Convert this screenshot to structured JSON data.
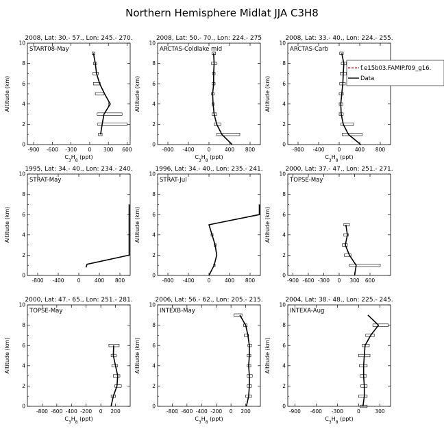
{
  "figure_title": "Northern Hemisphere Midlat JJA C3H8",
  "chart_data": [
    {
      "type": "line",
      "header": "2008, Lat:  30.- 57., Lon: 245.- 270.",
      "campaign": "START08-May",
      "xlabel": "C3H8 (ppt)",
      "ylabel": "Altitude (km)",
      "xlim": [
        -1000,
        650
      ],
      "ylim": [
        0,
        10
      ],
      "xticks": [
        -900,
        -600,
        -300,
        0,
        300,
        600
      ],
      "yticks": [
        0,
        2,
        4,
        6,
        8,
        10
      ],
      "series": [
        {
          "name": "",
          "y": [
            1,
            2,
            3,
            4,
            5,
            6,
            7,
            8,
            9
          ],
          "x": [
            175,
            200,
            230,
            330,
            240,
            160,
            110,
            90,
            60
          ]
        }
      ],
      "ranges": [
        {
          "y": 1,
          "lo": 140,
          "hi": 200
        },
        {
          "y": 2,
          "lo": 130,
          "hi": 600
        },
        {
          "y": 3,
          "lo": 120,
          "hi": 520
        },
        {
          "y": 4,
          "lo": 300,
          "hi": 320
        },
        {
          "y": 5,
          "lo": 90,
          "hi": 230
        },
        {
          "y": 6,
          "lo": 60,
          "hi": 170
        },
        {
          "y": 7,
          "lo": 50,
          "hi": 140
        },
        {
          "y": 8,
          "lo": 60,
          "hi": 110
        },
        {
          "y": 9,
          "lo": 40,
          "hi": 80
        }
      ]
    },
    {
      "type": "line",
      "header": "2008, Lat:  50.- 70., Lon: 224.- 275",
      "campaign": "ARCTAS-Coldlake mid",
      "xlabel": "C3H8 (ppt)",
      "ylabel": "Altitude (km)",
      "xlim": [
        -1000,
        1000
      ],
      "ylim": [
        0,
        10
      ],
      "xticks": [
        -800,
        -400,
        0,
        400,
        800
      ],
      "yticks": [
        0,
        2,
        4,
        6,
        8,
        10
      ],
      "series": [
        {
          "name": "",
          "y": [
            0,
            1,
            2,
            3,
            4,
            5,
            6,
            7,
            8,
            9
          ],
          "x": [
            450,
            250,
            150,
            100,
            80,
            70,
            90,
            90,
            100,
            90
          ]
        }
      ],
      "ranges": [
        {
          "y": 1,
          "lo": 150,
          "hi": 600
        },
        {
          "y": 2,
          "lo": 100,
          "hi": 230
        },
        {
          "y": 3,
          "lo": 60,
          "hi": 150
        },
        {
          "y": 4,
          "lo": 60,
          "hi": 100
        },
        {
          "y": 5,
          "lo": 50,
          "hi": 100
        },
        {
          "y": 6,
          "lo": 60,
          "hi": 120
        },
        {
          "y": 7,
          "lo": 70,
          "hi": 120
        },
        {
          "y": 8,
          "lo": 50,
          "hi": 150
        },
        {
          "y": 9,
          "lo": 60,
          "hi": 130
        }
      ]
    },
    {
      "type": "line",
      "header": "2008, Lat:  33.- 40., Lon: 224.- 255.",
      "campaign": "ARCTAS-Carb",
      "xlabel": "C3H8 (ppt)",
      "ylabel": "Altitude (km)",
      "xlim": [
        -1000,
        1000
      ],
      "ylim": [
        0,
        10
      ],
      "xticks": [
        -800,
        -400,
        0,
        400,
        800
      ],
      "yticks": [
        0,
        2,
        4,
        6,
        8,
        10
      ],
      "legend": {
        "position": "top-right",
        "entries": [
          "f.e15b03.FAMIP.f09_g16.",
          "Data"
        ]
      },
      "series": [
        {
          "name": "Data",
          "y": [
            0,
            1,
            2,
            3,
            4,
            5,
            6,
            7,
            8,
            9
          ],
          "x": [
            420,
            180,
            80,
            40,
            30,
            50,
            70,
            80,
            90,
            50
          ]
        }
      ],
      "ranges": [
        {
          "y": 1,
          "lo": 60,
          "hi": 450
        },
        {
          "y": 2,
          "lo": 30,
          "hi": 280
        },
        {
          "y": 3,
          "lo": 0,
          "hi": 80
        },
        {
          "y": 4,
          "lo": 0,
          "hi": 70
        },
        {
          "y": 5,
          "lo": 0,
          "hi": 80
        },
        {
          "y": 6,
          "lo": 10,
          "hi": 120
        },
        {
          "y": 7,
          "lo": 20,
          "hi": 140
        },
        {
          "y": 8,
          "lo": 40,
          "hi": 140
        },
        {
          "y": 9,
          "lo": 10,
          "hi": 80
        }
      ]
    },
    {
      "type": "line",
      "header": "1995, Lat: 34.- 40., Lon: 234.- 240.",
      "campaign": "STRAT-May",
      "xlabel": "",
      "ylabel": "Altitude (km)",
      "xlim": [
        -1000,
        1000
      ],
      "ylim": [
        0,
        10
      ],
      "xticks": [
        -800,
        -400,
        0,
        400,
        800
      ],
      "yticks": [
        0,
        2,
        4,
        6,
        8,
        10
      ],
      "series": [
        {
          "name": "",
          "y": [
            0.8,
            1.1,
            2,
            7
          ],
          "x": [
            140,
            160,
            980,
            980
          ]
        }
      ],
      "ranges": []
    },
    {
      "type": "line",
      "header": "1996, Lat: 34.- 40., Lon: 235.- 241.",
      "campaign": "STRAT-Jul",
      "xlabel": "",
      "ylabel": "Altitude (km)",
      "xlim": [
        -1000,
        1000
      ],
      "ylim": [
        0,
        10
      ],
      "xticks": [
        -800,
        -400,
        0,
        400,
        800
      ],
      "yticks": [
        0,
        2,
        4,
        6,
        8,
        10
      ],
      "series": [
        {
          "name": "",
          "y": [
            0,
            1,
            2,
            3,
            4,
            5,
            6,
            7
          ],
          "x": [
            0,
            100,
            150,
            120,
            60,
            0,
            980,
            980
          ]
        }
      ],
      "ranges": [
        {
          "y": 1,
          "lo": 90,
          "hi": 120
        },
        {
          "y": 3,
          "lo": 100,
          "hi": 140
        },
        {
          "y": 4,
          "lo": 40,
          "hi": 80
        }
      ]
    },
    {
      "type": "line",
      "header": "2000, Lat: 37.- 47., Lon: 251.- 271.",
      "campaign": "TOPSE-May",
      "xlabel": "",
      "ylabel": "Altitude (km)",
      "xlim": [
        -1000,
        1000
      ],
      "ylim": [
        0,
        10
      ],
      "xticks": [
        -900,
        -600,
        -300,
        0,
        300,
        600
      ],
      "yticks": [
        0,
        2,
        4,
        6,
        8,
        10
      ],
      "series": [
        {
          "name": "",
          "y": [
            0,
            1,
            2,
            3,
            4,
            5
          ],
          "x": [
            300,
            330,
            200,
            120,
            160,
            130
          ]
        }
      ],
      "ranges": [
        {
          "y": 1,
          "lo": 200,
          "hi": 800
        },
        {
          "y": 2,
          "lo": 100,
          "hi": 230
        },
        {
          "y": 3,
          "lo": 60,
          "hi": 160
        },
        {
          "y": 4,
          "lo": 90,
          "hi": 180
        },
        {
          "y": 5,
          "lo": 90,
          "hi": 200
        }
      ]
    },
    {
      "type": "line",
      "header": "2000, Lat: 47.- 65., Lon: 251.- 281.",
      "campaign": "TOPSE-May",
      "xlabel": "C3H8 (ppt)",
      "ylabel": "Altitude (km)",
      "xlim": [
        -1000,
        400
      ],
      "ylim": [
        0,
        10
      ],
      "xticks": [
        -800,
        -600,
        -400,
        -200,
        0,
        200
      ],
      "yticks": [
        0,
        2,
        4,
        6,
        8,
        10
      ],
      "series": [
        {
          "name": "",
          "y": [
            0,
            1,
            2,
            3,
            4,
            5,
            6
          ],
          "x": [
            140,
            170,
            220,
            230,
            200,
            170,
            175
          ]
        }
      ],
      "ranges": [
        {
          "y": 1,
          "lo": 140,
          "hi": 200
        },
        {
          "y": 2,
          "lo": 190,
          "hi": 280
        },
        {
          "y": 3,
          "lo": 170,
          "hi": 260
        },
        {
          "y": 4,
          "lo": 150,
          "hi": 230
        },
        {
          "y": 5,
          "lo": 140,
          "hi": 210
        },
        {
          "y": 6,
          "lo": 110,
          "hi": 250
        }
      ]
    },
    {
      "type": "line",
      "header": "2006, Lat: 56.- 62., Lon: 205.- 215.",
      "campaign": "INTEXB-May",
      "xlabel": "C3H8 (ppt)",
      "ylabel": "Altitude (km)",
      "xlim": [
        -1000,
        400
      ],
      "ylim": [
        0,
        10
      ],
      "xticks": [
        -800,
        -600,
        -400,
        -200,
        0,
        200
      ],
      "yticks": [
        0,
        2,
        4,
        6,
        8,
        10
      ],
      "series": [
        {
          "name": "",
          "y": [
            0,
            1,
            2,
            3,
            4,
            5,
            6,
            7,
            8,
            9
          ],
          "x": [
            210,
            240,
            250,
            250,
            240,
            250,
            250,
            230,
            200,
            120
          ]
        }
      ],
      "ranges": [
        {
          "y": 1,
          "lo": 200,
          "hi": 280
        },
        {
          "y": 2,
          "lo": 220,
          "hi": 280
        },
        {
          "y": 3,
          "lo": 220,
          "hi": 290
        },
        {
          "y": 4,
          "lo": 220,
          "hi": 270
        },
        {
          "y": 5,
          "lo": 220,
          "hi": 270
        },
        {
          "y": 6,
          "lo": 230,
          "hi": 280
        },
        {
          "y": 7,
          "lo": 180,
          "hi": 240
        },
        {
          "y": 8,
          "lo": 170,
          "hi": 220
        },
        {
          "y": 9,
          "lo": 40,
          "hi": 150
        }
      ]
    },
    {
      "type": "line",
      "header": "2004, Lat: 38.- 48., Lon: 225.- 245.",
      "campaign": "INTEXA-Aug",
      "xlabel": "C3H8 (ppt)",
      "ylabel": "Altitude (km)",
      "xlim": [
        -1000,
        450
      ],
      "ylim": [
        0,
        10
      ],
      "xticks": [
        -900,
        -600,
        -300,
        0,
        300
      ],
      "yticks": [
        0,
        2,
        4,
        6,
        8,
        10
      ],
      "series": [
        {
          "name": "",
          "y": [
            0,
            1,
            2,
            3,
            4,
            5,
            6,
            7,
            8,
            9
          ],
          "x": [
            60,
            80,
            80,
            70,
            70,
            80,
            90,
            170,
            280,
            130
          ]
        }
      ],
      "ranges": [
        {
          "y": 0,
          "lo": 20,
          "hi": 120
        },
        {
          "y": 1,
          "lo": 0,
          "hi": 120
        },
        {
          "y": 2,
          "lo": 30,
          "hi": 120
        },
        {
          "y": 3,
          "lo": 20,
          "hi": 110
        },
        {
          "y": 4,
          "lo": 10,
          "hi": 120
        },
        {
          "y": 5,
          "lo": 0,
          "hi": 160
        },
        {
          "y": 6,
          "lo": 50,
          "hi": 150
        },
        {
          "y": 7,
          "lo": 100,
          "hi": 220
        },
        {
          "y": 8,
          "lo": 200,
          "hi": 420
        }
      ]
    }
  ]
}
